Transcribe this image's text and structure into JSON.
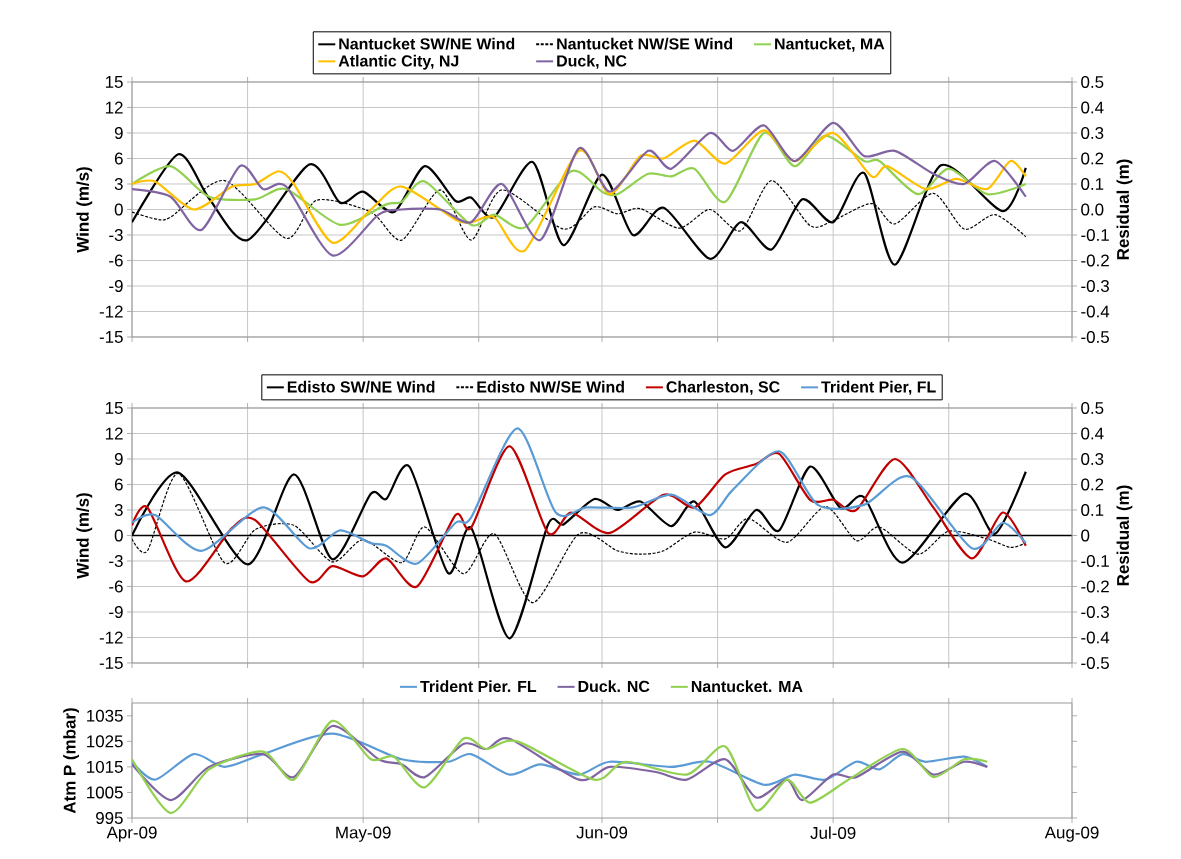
{
  "chart_data": [
    {
      "type": "line",
      "ylabel": "Wind (m/s)",
      "y2label": "Residual (m)",
      "xlim": [
        "2009-04-01",
        "2009-08-01"
      ],
      "xticks": [
        {
          "value": "2009-04-01",
          "label": null
        },
        {
          "value": "2009-04-16",
          "label": null
        },
        {
          "value": "2009-05-01",
          "label": null
        },
        {
          "value": "2009-05-16",
          "label": null
        },
        {
          "value": "2009-06-01",
          "label": null
        },
        {
          "value": "2009-06-16",
          "label": null
        },
        {
          "value": "2009-07-01",
          "label": null
        },
        {
          "value": "2009-07-16",
          "label": null
        },
        {
          "value": "2009-08-01",
          "label": null
        }
      ],
      "ylim": [
        -15,
        15
      ],
      "yticks": [
        -15,
        -12,
        -9,
        -6,
        -3,
        0,
        3,
        6,
        9,
        12,
        15
      ],
      "y2lim": [
        -0.5,
        0.5
      ],
      "y2ticks": [
        -0.5,
        -0.4,
        -0.3,
        -0.2,
        -0.1,
        {
          "value": 0,
          "label": "0.0"
        },
        0.1,
        0.2,
        0.3,
        0.4,
        0.5
      ],
      "grid": true,
      "legend": "top",
      "tick_labels": "y",
      "series": [
        {
          "name": "Nantucket SW/NE Wind",
          "color": "#000000",
          "axis": "y",
          "line_style": "solid",
          "x": [
            "2009-04-01",
            "2009-04-07",
            "2009-04-11",
            "2009-04-16",
            "2009-04-24",
            "2009-04-28",
            "2009-05-01",
            "2009-05-05",
            "2009-05-09",
            "2009-05-13",
            "2009-05-15",
            "2009-05-18",
            "2009-05-23",
            "2009-05-27",
            "2009-06-01",
            "2009-06-05",
            "2009-06-09",
            "2009-06-15",
            "2009-06-19",
            "2009-06-23",
            "2009-06-27",
            "2009-07-01",
            "2009-07-05",
            "2009-07-09",
            "2009-07-15",
            "2009-07-23",
            "2009-07-26"
          ],
          "values": [
            -1.5,
            6.5,
            1.3,
            -3.6,
            5.3,
            0.8,
            2.1,
            -0.3,
            5.1,
            1.0,
            1.4,
            -0.9,
            5.6,
            -4.2,
            4.1,
            -3.0,
            0.2,
            -5.8,
            -1.5,
            -4.7,
            1.2,
            -1.5,
            4.3,
            -6.5,
            5.2,
            -0.2,
            4.9
          ]
        },
        {
          "name": "Nantucket NW/SE Wind",
          "color": "#000000",
          "axis": "y",
          "line_style": "dashed",
          "x": [
            "2009-04-01",
            "2009-04-04",
            "2009-04-06",
            "2009-04-13",
            "2009-04-21",
            "2009-04-25",
            "2009-05-02",
            "2009-05-06",
            "2009-05-11",
            "2009-05-15",
            "2009-05-19",
            "2009-05-27",
            "2009-05-31",
            "2009-06-03",
            "2009-06-06",
            "2009-06-11",
            "2009-06-15",
            "2009-06-19",
            "2009-06-23",
            "2009-06-28",
            "2009-07-01",
            "2009-07-06",
            "2009-07-09",
            "2009-07-14",
            "2009-07-18",
            "2009-07-22",
            "2009-07-26"
          ],
          "values": [
            -0.3,
            -1.1,
            -0.9,
            3.4,
            -3.4,
            1.1,
            -0.3,
            -3.6,
            2.3,
            -3.6,
            2.3,
            -2.3,
            0.3,
            -0.5,
            0.1,
            -2.2,
            0,
            -2.5,
            3.4,
            -1.9,
            -1.3,
            0.7,
            -1.7,
            1.9,
            -2.3,
            -0.6,
            -3.2
          ]
        },
        {
          "name": "Nantucket, MA",
          "color": "#92d050",
          "axis": "y2",
          "line_style": "solid",
          "x": [
            "2009-04-01",
            "2009-04-06",
            "2009-04-11",
            "2009-04-17",
            "2009-04-21",
            "2009-04-28",
            "2009-05-04",
            "2009-05-06",
            "2009-05-09",
            "2009-05-15",
            "2009-05-18",
            "2009-05-22",
            "2009-05-28",
            "2009-06-01",
            "2009-06-03",
            "2009-06-07",
            "2009-06-10",
            "2009-06-13",
            "2009-06-17",
            "2009-06-22",
            "2009-06-26",
            "2009-06-30",
            "2009-07-05",
            "2009-07-07",
            "2009-07-12",
            "2009-07-16",
            "2009-07-21",
            "2009-07-26"
          ],
          "values": [
            0.1,
            0.17,
            0.05,
            0.04,
            0.08,
            -0.06,
            0.02,
            0.03,
            0.11,
            -0.06,
            -0.02,
            -0.07,
            0.15,
            0.07,
            0.06,
            0.14,
            0.13,
            0.16,
            0.03,
            0.3,
            0.17,
            0.29,
            0.19,
            0.19,
            0.06,
            0.16,
            0.06,
            0.1
          ]
        },
        {
          "name": "Atlantic City, NJ",
          "color": "#ffc000",
          "axis": "y2",
          "line_style": "solid",
          "x": [
            "2009-04-01",
            "2009-04-04",
            "2009-04-09",
            "2009-04-14",
            "2009-04-17",
            "2009-04-20",
            "2009-04-22",
            "2009-04-27",
            "2009-05-02",
            "2009-05-06",
            "2009-05-13",
            "2009-05-15",
            "2009-05-18",
            "2009-05-22",
            "2009-05-29",
            "2009-06-02",
            "2009-06-06",
            "2009-06-09",
            "2009-06-13",
            "2009-06-17",
            "2009-06-22",
            "2009-06-26",
            "2009-07-01",
            "2009-07-06",
            "2009-07-08",
            "2009-07-13",
            "2009-07-17",
            "2009-07-21",
            "2009-07-24",
            "2009-07-26"
          ],
          "values": [
            0.1,
            0.11,
            0,
            0.09,
            0.1,
            0.15,
            0.1,
            -0.13,
            0,
            0.09,
            -0.04,
            -0.05,
            -0.03,
            -0.16,
            0.23,
            0.06,
            0.21,
            0.2,
            0.27,
            0.18,
            0.31,
            0.19,
            0.3,
            0.13,
            0.17,
            0.08,
            0.12,
            0.08,
            0.19,
            0.13
          ]
        },
        {
          "name": "Duck, NC",
          "color": "#8064a2",
          "axis": "y2",
          "line_style": "solid",
          "x": [
            "2009-04-01",
            "2009-04-06",
            "2009-04-10",
            "2009-04-15",
            "2009-04-18",
            "2009-04-21",
            "2009-04-27",
            "2009-05-03",
            "2009-05-06",
            "2009-05-11",
            "2009-05-15",
            "2009-05-19",
            "2009-05-24",
            "2009-05-29",
            "2009-06-02",
            "2009-06-07",
            "2009-06-10",
            "2009-06-15",
            "2009-06-18",
            "2009-06-22",
            "2009-06-26",
            "2009-07-01",
            "2009-07-05",
            "2009-07-09",
            "2009-07-14",
            "2009-07-18",
            "2009-07-22",
            "2009-07-26"
          ],
          "values": [
            0.08,
            0.05,
            -0.08,
            0.17,
            0.08,
            0.09,
            -0.18,
            -0.02,
            0,
            0,
            -0.05,
            0.1,
            -0.12,
            0.24,
            0.07,
            0.23,
            0.16,
            0.3,
            0.23,
            0.33,
            0.19,
            0.34,
            0.21,
            0.23,
            0.14,
            0.1,
            0.19,
            0.05
          ]
        }
      ]
    },
    {
      "type": "line",
      "ylabel": "Wind (m/s)",
      "y2label": "Residual (m)",
      "xlim": [
        "2009-04-01",
        "2009-08-01"
      ],
      "xticks": [
        {
          "value": "2009-04-01",
          "label": null
        },
        {
          "value": "2009-04-16",
          "label": null
        },
        {
          "value": "2009-05-01",
          "label": null
        },
        {
          "value": "2009-05-16",
          "label": null
        },
        {
          "value": "2009-06-01",
          "label": null
        },
        {
          "value": "2009-06-16",
          "label": null
        },
        {
          "value": "2009-07-01",
          "label": null
        },
        {
          "value": "2009-07-16",
          "label": null
        },
        {
          "value": "2009-08-01",
          "label": null
        }
      ],
      "ylim": [
        -15,
        15
      ],
      "yticks": [
        -15,
        -12,
        -9,
        -6,
        -3,
        0,
        3,
        6,
        9,
        12,
        15
      ],
      "y2lim": [
        -0.5,
        0.5
      ],
      "y2ticks": [
        -0.5,
        -0.4,
        -0.3,
        -0.2,
        -0.1,
        0,
        0.1,
        0.2,
        0.3,
        0.4,
        0.5
      ],
      "grid": true,
      "legend": "top",
      "tick_labels": "y",
      "ref_lines": [
        {
          "axis": "y",
          "value": 0,
          "color": "#000000"
        }
      ],
      "series": [
        {
          "name": "Edisto SW/NE Wind",
          "color": "#000000",
          "axis": "y",
          "line_style": "solid",
          "x": [
            "2009-04-01",
            "2009-04-07",
            "2009-04-16",
            "2009-04-22",
            "2009-04-27",
            "2009-05-02",
            "2009-05-04",
            "2009-05-07",
            "2009-05-12",
            "2009-05-15",
            "2009-05-20",
            "2009-05-25",
            "2009-05-27",
            "2009-05-31",
            "2009-06-03",
            "2009-06-06",
            "2009-06-10",
            "2009-06-13",
            "2009-06-17",
            "2009-06-21",
            "2009-06-24",
            "2009-06-28",
            "2009-07-02",
            "2009-07-05",
            "2009-07-10",
            "2009-07-18",
            "2009-07-22",
            "2009-07-26"
          ],
          "values": [
            0,
            7.4,
            -3.4,
            7.2,
            -2.8,
            4.9,
            4.3,
            8.1,
            -4.4,
            0.9,
            -12.1,
            1.3,
            1.3,
            4.3,
            3.0,
            4.0,
            1.1,
            4.0,
            -1.4,
            3.0,
            0.6,
            8.1,
            3.2,
            4.5,
            -3.2,
            4.9,
            0.2,
            7.5
          ]
        },
        {
          "name": "Edisto NW/SE Wind",
          "color": "#000000",
          "axis": "y",
          "line_style": "dashed",
          "x": [
            "2009-04-01",
            "2009-04-03",
            "2009-04-07",
            "2009-04-13",
            "2009-04-17",
            "2009-04-22",
            "2009-04-27",
            "2009-05-01",
            "2009-05-06",
            "2009-05-09",
            "2009-05-14",
            "2009-05-18",
            "2009-05-23",
            "2009-05-29",
            "2009-06-03",
            "2009-06-06",
            "2009-06-09",
            "2009-06-13",
            "2009-06-17",
            "2009-06-20",
            "2009-06-25",
            "2009-06-30",
            "2009-07-04",
            "2009-07-07",
            "2009-07-12",
            "2009-07-16",
            "2009-07-21",
            "2009-07-24",
            "2009-07-26"
          ],
          "values": [
            -0.4,
            -1.8,
            7.3,
            -3.2,
            0.7,
            1.2,
            -3.1,
            -0.5,
            -3.2,
            1.0,
            -4.5,
            0.2,
            -7.9,
            0.2,
            -1.8,
            -2.2,
            -1.8,
            0.4,
            -0.4,
            2.0,
            -0.8,
            3.4,
            -0.6,
            1.0,
            -2.2,
            0.5,
            -0.4,
            -1.4,
            -0.9
          ]
        },
        {
          "name": "Charleston, SC",
          "color": "#c00000",
          "axis": "y2",
          "line_style": "solid",
          "x": [
            "2009-04-01",
            "2009-04-03",
            "2009-04-08",
            "2009-04-14",
            "2009-04-17",
            "2009-04-24",
            "2009-04-27",
            "2009-05-01",
            "2009-05-04",
            "2009-05-08",
            "2009-05-13",
            "2009-05-15",
            "2009-05-20",
            "2009-05-25",
            "2009-05-28",
            "2009-06-02",
            "2009-06-09",
            "2009-06-13",
            "2009-06-17",
            "2009-06-21",
            "2009-06-24",
            "2009-06-28",
            "2009-07-01",
            "2009-07-04",
            "2009-07-09",
            "2009-07-14",
            "2009-07-19",
            "2009-07-23",
            "2009-07-26"
          ],
          "values": [
            0.04,
            0.11,
            -0.18,
            0.03,
            0.06,
            -0.18,
            -0.12,
            -0.16,
            -0.09,
            -0.2,
            0.08,
            0.03,
            0.35,
            0.01,
            0.09,
            0.01,
            0.16,
            0.11,
            0.24,
            0.28,
            0.32,
            0.14,
            0.14,
            0.1,
            0.3,
            0.11,
            -0.09,
            0.09,
            -0.04
          ]
        },
        {
          "name": "Trident Pier, FL",
          "color": "#5b9bd5",
          "axis": "y2",
          "line_style": "solid",
          "x": [
            "2009-04-01",
            "2009-04-04",
            "2009-04-10",
            "2009-04-18",
            "2009-04-24",
            "2009-04-28",
            "2009-05-02",
            "2009-05-04",
            "2009-05-08",
            "2009-05-13",
            "2009-05-15",
            "2009-05-21",
            "2009-05-26",
            "2009-05-30",
            "2009-06-05",
            "2009-06-10",
            "2009-06-15",
            "2009-06-18",
            "2009-06-24",
            "2009-06-29",
            "2009-07-05",
            "2009-07-11",
            "2009-07-19",
            "2009-07-23",
            "2009-07-26"
          ],
          "values": [
            0.05,
            0.08,
            -0.06,
            0.11,
            -0.05,
            0.02,
            -0.03,
            -0.04,
            -0.11,
            0.05,
            0.07,
            0.42,
            0.09,
            0.11,
            0.11,
            0.16,
            0.08,
            0.18,
            0.33,
            0.12,
            0.12,
            0.23,
            -0.05,
            0.05,
            -0.03
          ]
        }
      ]
    },
    {
      "type": "line",
      "ylabel": "Atm P (mbar)",
      "xlim": [
        "2009-04-01",
        "2009-08-01"
      ],
      "xticks": [
        {
          "value": "2009-04-01",
          "label": "Apr-09"
        },
        {
          "value": "2009-04-16",
          "label": null
        },
        {
          "value": "2009-05-01",
          "label": "May-09"
        },
        {
          "value": "2009-05-16",
          "label": null
        },
        {
          "value": "2009-06-01",
          "label": "Jun-09"
        },
        {
          "value": "2009-06-16",
          "label": null
        },
        {
          "value": "2009-07-01",
          "label": "Jul-09"
        },
        {
          "value": "2009-07-16",
          "label": null
        },
        {
          "value": "2009-08-01",
          "label": "Aug-09"
        }
      ],
      "ylim": [
        995,
        1040
      ],
      "yticks": [
        995,
        1005,
        1015,
        1025,
        1035
      ],
      "grid": "x",
      "legend": "top",
      "series": [
        {
          "name": "Trident Pier. FL",
          "color": "#5b9bd5",
          "line_style": "solid",
          "x": [
            "2009-04-01",
            "2009-04-04",
            "2009-04-09",
            "2009-04-13",
            "2009-04-18",
            "2009-04-27",
            "2009-05-06",
            "2009-05-12",
            "2009-05-15",
            "2009-05-20",
            "2009-05-24",
            "2009-05-29",
            "2009-06-02",
            "2009-06-10",
            "2009-06-15",
            "2009-06-22",
            "2009-06-26",
            "2009-06-30",
            "2009-07-04",
            "2009-07-07",
            "2009-07-10",
            "2009-07-13",
            "2009-07-18",
            "2009-07-21"
          ],
          "values": [
            1017,
            1010,
            1020,
            1015,
            1020,
            1028,
            1018,
            1017,
            1020,
            1012,
            1016,
            1012,
            1017,
            1015,
            1017,
            1008,
            1012,
            1010,
            1017,
            1014,
            1020,
            1017,
            1019,
            1015
          ]
        },
        {
          "name": "Duck. NC",
          "color": "#8064a2",
          "line_style": "solid",
          "x": [
            "2009-04-01",
            "2009-04-06",
            "2009-04-11",
            "2009-04-18",
            "2009-04-22",
            "2009-04-27",
            "2009-05-03",
            "2009-05-06",
            "2009-05-09",
            "2009-05-14",
            "2009-05-17",
            "2009-05-20",
            "2009-05-29",
            "2009-06-02",
            "2009-06-08",
            "2009-06-12",
            "2009-06-17",
            "2009-06-21",
            "2009-06-25",
            "2009-06-27",
            "2009-07-01",
            "2009-07-04",
            "2009-07-10",
            "2009-07-14",
            "2009-07-18",
            "2009-07-21"
          ],
          "values": [
            1016,
            1002,
            1015,
            1020,
            1011,
            1031,
            1018,
            1016,
            1011,
            1024,
            1022,
            1026,
            1010,
            1015,
            1013,
            1010,
            1018,
            1003,
            1010,
            1002,
            1012,
            1011,
            1021,
            1012,
            1017,
            1015
          ]
        },
        {
          "name": "Nantucket. MA",
          "color": "#92d050",
          "line_style": "solid",
          "x": [
            "2009-04-01",
            "2009-04-06",
            "2009-04-11",
            "2009-04-18",
            "2009-04-22",
            "2009-04-27",
            "2009-05-02",
            "2009-05-05",
            "2009-05-09",
            "2009-05-14",
            "2009-05-17",
            "2009-05-21",
            "2009-05-31",
            "2009-06-04",
            "2009-06-12",
            "2009-06-17",
            "2009-06-21",
            "2009-06-25",
            "2009-06-28",
            "2009-07-03",
            "2009-07-10",
            "2009-07-14",
            "2009-07-18",
            "2009-07-21"
          ],
          "values": [
            1018,
            997,
            1014,
            1021,
            1010,
            1033,
            1018,
            1019,
            1007,
            1026,
            1022,
            1025,
            1010,
            1017,
            1012,
            1023,
            998,
            1010,
            1001,
            1010,
            1022,
            1011,
            1018,
            1017
          ]
        }
      ]
    }
  ]
}
